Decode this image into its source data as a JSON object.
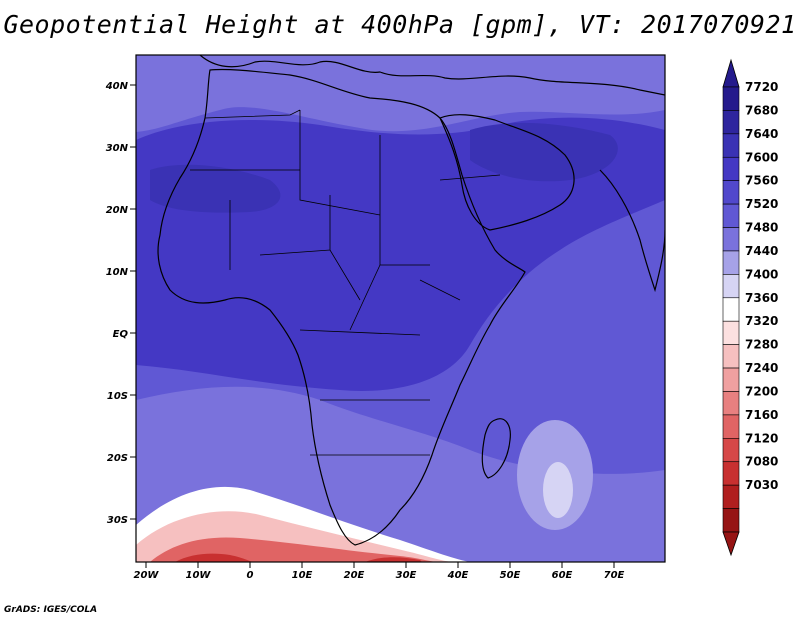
{
  "title": "Geopotential Height at 400hPa [gpm], VT: 2017070921",
  "footer": "GrADS: IGES/COLA",
  "axes": {
    "lat_labels": [
      "40N",
      "30N",
      "20N",
      "10N",
      "EQ",
      "10S",
      "20S",
      "30S"
    ],
    "lon_labels": [
      "20W",
      "10W",
      "0",
      "10E",
      "20E",
      "30E",
      "40E",
      "50E",
      "60E",
      "70E"
    ]
  },
  "colorbar": {
    "levels": [
      "7720",
      "7680",
      "7640",
      "7600",
      "7560",
      "7520",
      "7480",
      "7440",
      "7400",
      "7360",
      "7320",
      "7280",
      "7240",
      "7200",
      "7160",
      "7120",
      "7080",
      "7030"
    ],
    "colors": [
      "#241a8c",
      "#2e259e",
      "#3a32b4",
      "#4438c4",
      "#5148cc",
      "#6058d4",
      "#7a72dc",
      "#a6a2e8",
      "#d6d4f4",
      "#ffffff",
      "#fce0e0",
      "#f6c0c0",
      "#f0a0a0",
      "#e88080",
      "#e06464",
      "#d64848",
      "#c83030",
      "#b01e1e",
      "#961414"
    ]
  },
  "field_colors": {
    "background": "#6058d4",
    "north_africa": "#4438c4",
    "arabia": "#3a32b4",
    "saharan_core": "#3a32b4",
    "mediterranean": "#7a72dc",
    "south_belt": "#7a72dc",
    "white_band": "#ffffff",
    "pink": "#f6c0c0",
    "red": "#e06464",
    "deep_red": "#c83030",
    "madagascar_ridge": "#a6a2e8",
    "ridge_core": "#d6d4f4"
  }
}
